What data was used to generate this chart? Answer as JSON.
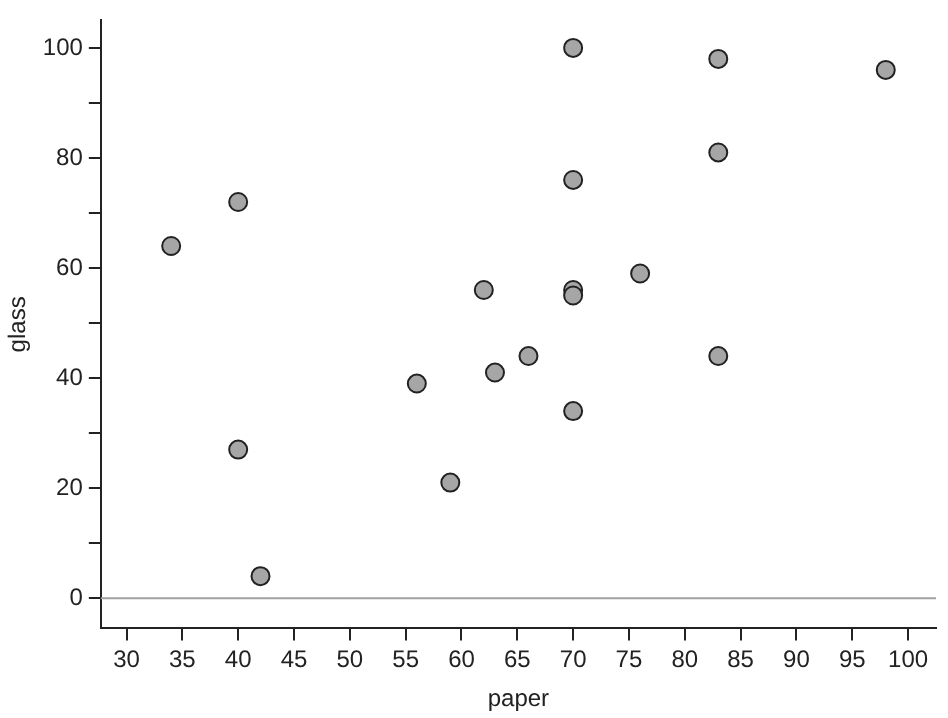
{
  "chart_data": {
    "type": "scatter",
    "xlabel": "paper",
    "ylabel": "glass",
    "x": [
      34,
      40,
      40,
      42,
      56,
      59,
      62,
      63,
      66,
      70,
      70,
      70,
      70,
      70,
      76,
      83,
      83,
      83,
      98
    ],
    "series": [
      {
        "color": "#a6a6a6",
        "values": [
          64,
          72,
          27,
          4,
          39,
          21,
          56,
          41,
          44,
          100,
          76,
          56,
          55,
          34,
          59,
          98,
          81,
          44,
          96
        ]
      }
    ],
    "xlim": [
      27.7,
      102.5
    ],
    "ylim": [
      -5.5,
      105
    ],
    "xticks": [
      30,
      35,
      40,
      45,
      50,
      55,
      60,
      65,
      70,
      75,
      80,
      85,
      90,
      95,
      100
    ],
    "yticks": [
      0,
      {
        "value": 10,
        "label": null
      },
      20,
      {
        "value": 30,
        "label": null
      },
      40,
      {
        "value": 50,
        "label": null
      },
      60,
      {
        "value": 70,
        "label": null
      },
      80,
      {
        "value": 90,
        "label": null
      },
      100
    ],
    "ref_lines": [
      {
        "axis": "y",
        "value": 0,
        "color": "#a0a0a0"
      }
    ],
    "marker": "circle",
    "grid": false,
    "legend": false
  }
}
